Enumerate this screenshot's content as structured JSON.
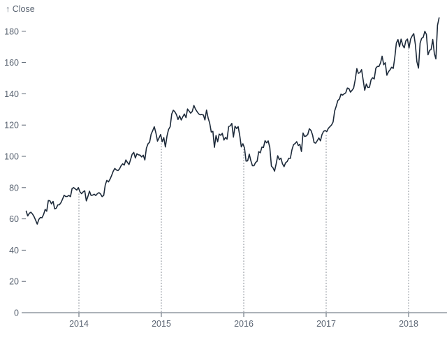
{
  "chart_data": {
    "type": "line",
    "title": "",
    "ylabel": "Close",
    "ylabel_display": "↑ Close",
    "xlabel": "",
    "xlim": [
      2013.36,
      2018.37
    ],
    "ylim": [
      0,
      190
    ],
    "x_ticks": [
      2014,
      2015,
      2016,
      2017,
      2018
    ],
    "x_tick_labels": [
      "2014",
      "2015",
      "2016",
      "2017",
      "2018"
    ],
    "y_ticks": [
      0,
      20,
      40,
      60,
      80,
      100,
      120,
      140,
      160,
      180
    ],
    "y_tick_labels": [
      "0",
      "20",
      "40",
      "60",
      "80",
      "100",
      "120",
      "140",
      "160",
      "180"
    ],
    "grid": "dotted vertical rules at each year tick rising from baseline to the line value",
    "legend_position": "none",
    "colors": {
      "line": "#1d2a3a",
      "axis_text": "#5a6472",
      "axis_line": "#5a6472",
      "dotted_rule": "#8d939b",
      "background": "#ffffff"
    },
    "series": [
      {
        "name": "Close",
        "cadence": "weekly",
        "values": [
          64.96,
          61.89,
          63.59,
          64.25,
          63.12,
          61.44,
          59.07,
          56.65,
          59.63,
          60.93,
          60.71,
          62.83,
          66.08,
          64.92,
          71.76,
          71.57,
          69.6,
          71.17,
          66.41,
          66.77,
          68.96,
          69.0,
          70.4,
          72.7,
          75.14,
          74.29,
          74.37,
          74.99,
          74.26,
          79.44,
          80.0,
          79.2,
          78.43,
          80.01,
          77.28,
          76.13,
          77.24,
          78.01,
          71.51,
          74.24,
          77.71,
          75.04,
          75.18,
          75.77,
          74.96,
          76.12,
          76.78,
          75.97,
          74.23,
          75.0,
          81.71,
          84.65,
          83.65,
          85.36,
          87.73,
          90.43,
          92.22,
          91.28,
          90.91,
          91.98,
          94.03,
          95.22,
          94.43,
          97.67,
          96.13,
          94.74,
          97.98,
          101.32,
          102.5,
          98.97,
          101.66,
          100.96,
          100.75,
          99.62,
          100.73,
          97.67,
          105.22,
          108.0,
          109.01,
          114.18,
          116.47,
          118.93,
          115.0,
          109.73,
          111.78,
          113.99,
          109.33,
          112.01,
          105.99,
          112.98,
          117.16,
          118.93,
          127.08,
          129.5,
          128.46,
          126.6,
          123.59,
          125.9,
          123.25,
          125.32,
          127.1,
          124.75,
          130.28,
          128.95,
          127.62,
          128.77,
          132.54,
          130.28,
          128.65,
          127.17,
          126.6,
          126.75,
          126.44,
          123.28,
          129.62,
          124.5,
          121.3,
          115.52,
          115.96,
          105.76,
          113.29,
          109.27,
          114.21,
          113.45,
          114.71,
          110.38,
          112.12,
          111.04,
          119.08,
          119.5,
          121.06,
          112.34,
          119.3,
          117.81,
          119.03,
          113.18,
          106.03,
          108.03,
          105.26,
          96.96,
          97.13,
          101.42,
          97.34,
          94.02,
          93.99,
          96.04,
          96.91,
          103.01,
          102.26,
          105.92,
          105.67,
          109.99,
          108.66,
          109.85,
          105.68,
          93.74,
          92.72,
          90.52,
          95.22,
          100.35,
          97.92,
          98.83,
          95.33,
          93.4,
          95.89,
          96.68,
          98.78,
          98.66,
          104.21,
          107.48,
          108.18,
          109.36,
          106.94,
          107.73,
          103.13,
          114.92,
          112.71,
          113.05,
          114.06,
          117.63,
          116.6,
          113.72,
          108.84,
          108.43,
          110.06,
          111.79,
          109.9,
          113.95,
          115.97,
          116.52,
          115.82,
          117.91,
          119.04,
          120.0,
          121.95,
          129.08,
          132.12,
          135.72,
          136.66,
          139.78,
          139.14,
          139.99,
          140.64,
          143.66,
          143.34,
          141.05,
          142.27,
          143.65,
          148.96,
          156.1,
          153.06,
          153.61,
          155.45,
          148.98,
          142.27,
          146.28,
          144.02,
          144.18,
          149.04,
          150.27,
          149.5,
          156.39,
          157.48,
          157.5,
          159.86,
          164.05,
          158.63,
          159.88,
          151.89,
          154.12,
          155.3,
          156.99,
          156.25,
          163.05,
          172.5,
          174.67,
          170.15,
          174.97,
          171.05,
          169.37,
          173.97,
          175.01,
          169.23,
          175.0,
          177.09,
          178.46,
          171.51,
          160.5,
          156.41,
          172.43,
          175.5,
          176.21,
          179.98,
          178.02,
          164.94,
          167.78,
          168.38,
          174.73,
          165.72,
          162.32,
          183.83,
          188.59
        ]
      }
    ]
  }
}
